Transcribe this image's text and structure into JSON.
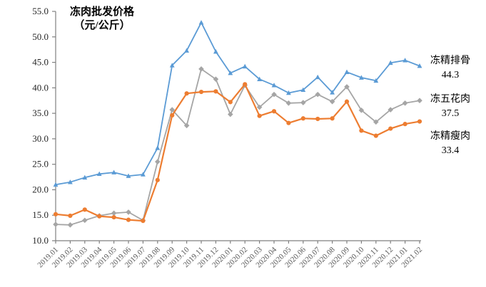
{
  "title": {
    "line1": "冻肉批发价格",
    "line2": "（元/公斤）"
  },
  "legend": [
    {
      "label": "冻精排骨",
      "value": "44.3",
      "color": "#5B9BD5"
    },
    {
      "label": "冻五花肉",
      "value": "37.5",
      "color": "#A5A5A5"
    },
    {
      "label": "冻精瘦肉",
      "value": "33.4",
      "color": "#ED7D31"
    }
  ],
  "chart_data": {
    "type": "line",
    "title": "冻肉批发价格（元/公斤）",
    "ylabel": "元/公斤",
    "ylim": [
      10,
      55
    ],
    "ytick_step": 5,
    "ytick_format_decimals": 1,
    "grid": false,
    "legend_position": "right of line ends, with current values",
    "x_label_rotation": -45,
    "categories": [
      "2019.01",
      "2019.02",
      "2019.03",
      "2019.04",
      "2019.05",
      "2019.06",
      "2019.07",
      "2019.08",
      "2019.09",
      "2019.10",
      "2019.11",
      "2019.12",
      "2020.01",
      "2020.02",
      "2020.03",
      "2020.04",
      "2020.05",
      "2020.06",
      "2020.07",
      "2020.08",
      "2020.09",
      "2020.10",
      "2020.11",
      "2020.12",
      "2021.01",
      "2021.02"
    ],
    "series": [
      {
        "name": "冻精排骨",
        "color": "#5B9BD5",
        "marker": "triangle",
        "line_width": 1.8,
        "end_label": "44.3",
        "values": [
          21.0,
          21.5,
          22.4,
          23.1,
          23.4,
          22.7,
          23.0,
          28.2,
          44.4,
          47.3,
          52.8,
          47.1,
          42.9,
          44.2,
          41.7,
          40.5,
          39.0,
          39.6,
          42.1,
          39.1,
          43.1,
          42.0,
          41.4,
          44.9,
          45.4,
          44.3
        ]
      },
      {
        "name": "冻五花肉",
        "color": "#A5A5A5",
        "marker": "diamond",
        "line_width": 1.8,
        "end_label": "37.5",
        "values": [
          13.2,
          13.1,
          14.0,
          14.9,
          15.4,
          15.6,
          14.0,
          25.5,
          35.7,
          32.6,
          43.7,
          41.7,
          34.8,
          40.5,
          36.2,
          38.7,
          37.0,
          37.1,
          38.7,
          37.3,
          40.2,
          35.6,
          33.3,
          35.7,
          37.0,
          37.5
        ]
      },
      {
        "name": "冻精瘦肉",
        "color": "#ED7D31",
        "marker": "circle",
        "line_width": 2.2,
        "end_label": "33.4",
        "values": [
          15.2,
          14.9,
          16.1,
          14.8,
          14.6,
          14.1,
          13.9,
          21.9,
          34.6,
          38.9,
          39.2,
          39.3,
          37.2,
          40.7,
          34.5,
          35.4,
          33.1,
          34.0,
          33.9,
          34.0,
          37.3,
          31.6,
          30.6,
          32.0,
          32.9,
          33.4
        ]
      }
    ]
  }
}
